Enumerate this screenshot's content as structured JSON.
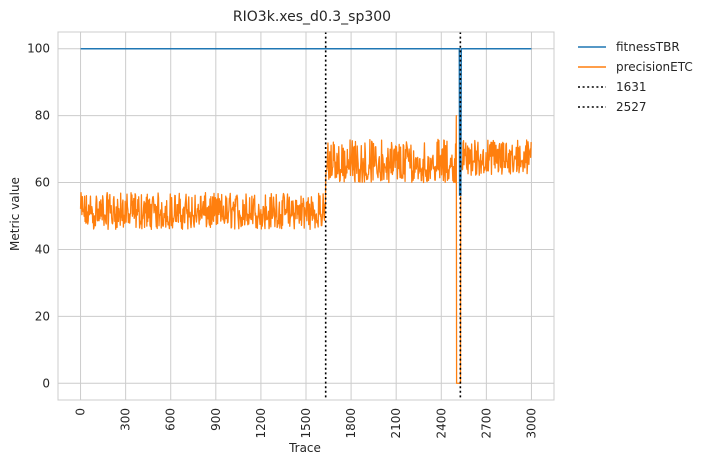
{
  "chart_data": {
    "type": "line",
    "title": "RIO3k.xes_d0.3_sp300",
    "xlabel": "Trace",
    "ylabel": "Metric value",
    "xlim": [
      -150,
      3150
    ],
    "ylim": [
      -5,
      105
    ],
    "x_ticks": [
      "0",
      "300",
      "600",
      "900",
      "1200",
      "1500",
      "1800",
      "2100",
      "2400",
      "2700",
      "3000"
    ],
    "y_ticks": [
      "0",
      "20",
      "40",
      "60",
      "80",
      "100"
    ],
    "grid": true,
    "legend_position": "outside-top-right",
    "series": [
      {
        "name": "fitnessTBR",
        "color": "#1f77b4",
        "points": [
          [
            0,
            100
          ],
          [
            2520,
            100
          ],
          [
            2522,
            56
          ],
          [
            2524,
            80
          ],
          [
            2526,
            56
          ],
          [
            2528,
            80
          ],
          [
            2530,
            56
          ],
          [
            2533,
            100
          ],
          [
            3000,
            100
          ]
        ]
      },
      {
        "name": "precisionETC",
        "color": "#ff7f0e",
        "segments": [
          {
            "x_from": 0,
            "x_to": 1630,
            "low": 46,
            "high": 57,
            "mean": 50
          },
          {
            "x_from": 1631,
            "x_to": 2500,
            "low": 60,
            "high": 73,
            "mean": 64
          },
          {
            "x_from": 2500,
            "x_to": 2530,
            "low": 0,
            "high": 80,
            "mean": 0
          },
          {
            "x_from": 2530,
            "x_to": 3000,
            "low": 62,
            "high": 73,
            "mean": 66
          }
        ]
      }
    ],
    "vlines": [
      {
        "name": "1631",
        "x": 1631,
        "color": "#000000",
        "style": "dotted"
      },
      {
        "name": "2527",
        "x": 2527,
        "color": "#000000",
        "style": "dotted"
      }
    ]
  }
}
